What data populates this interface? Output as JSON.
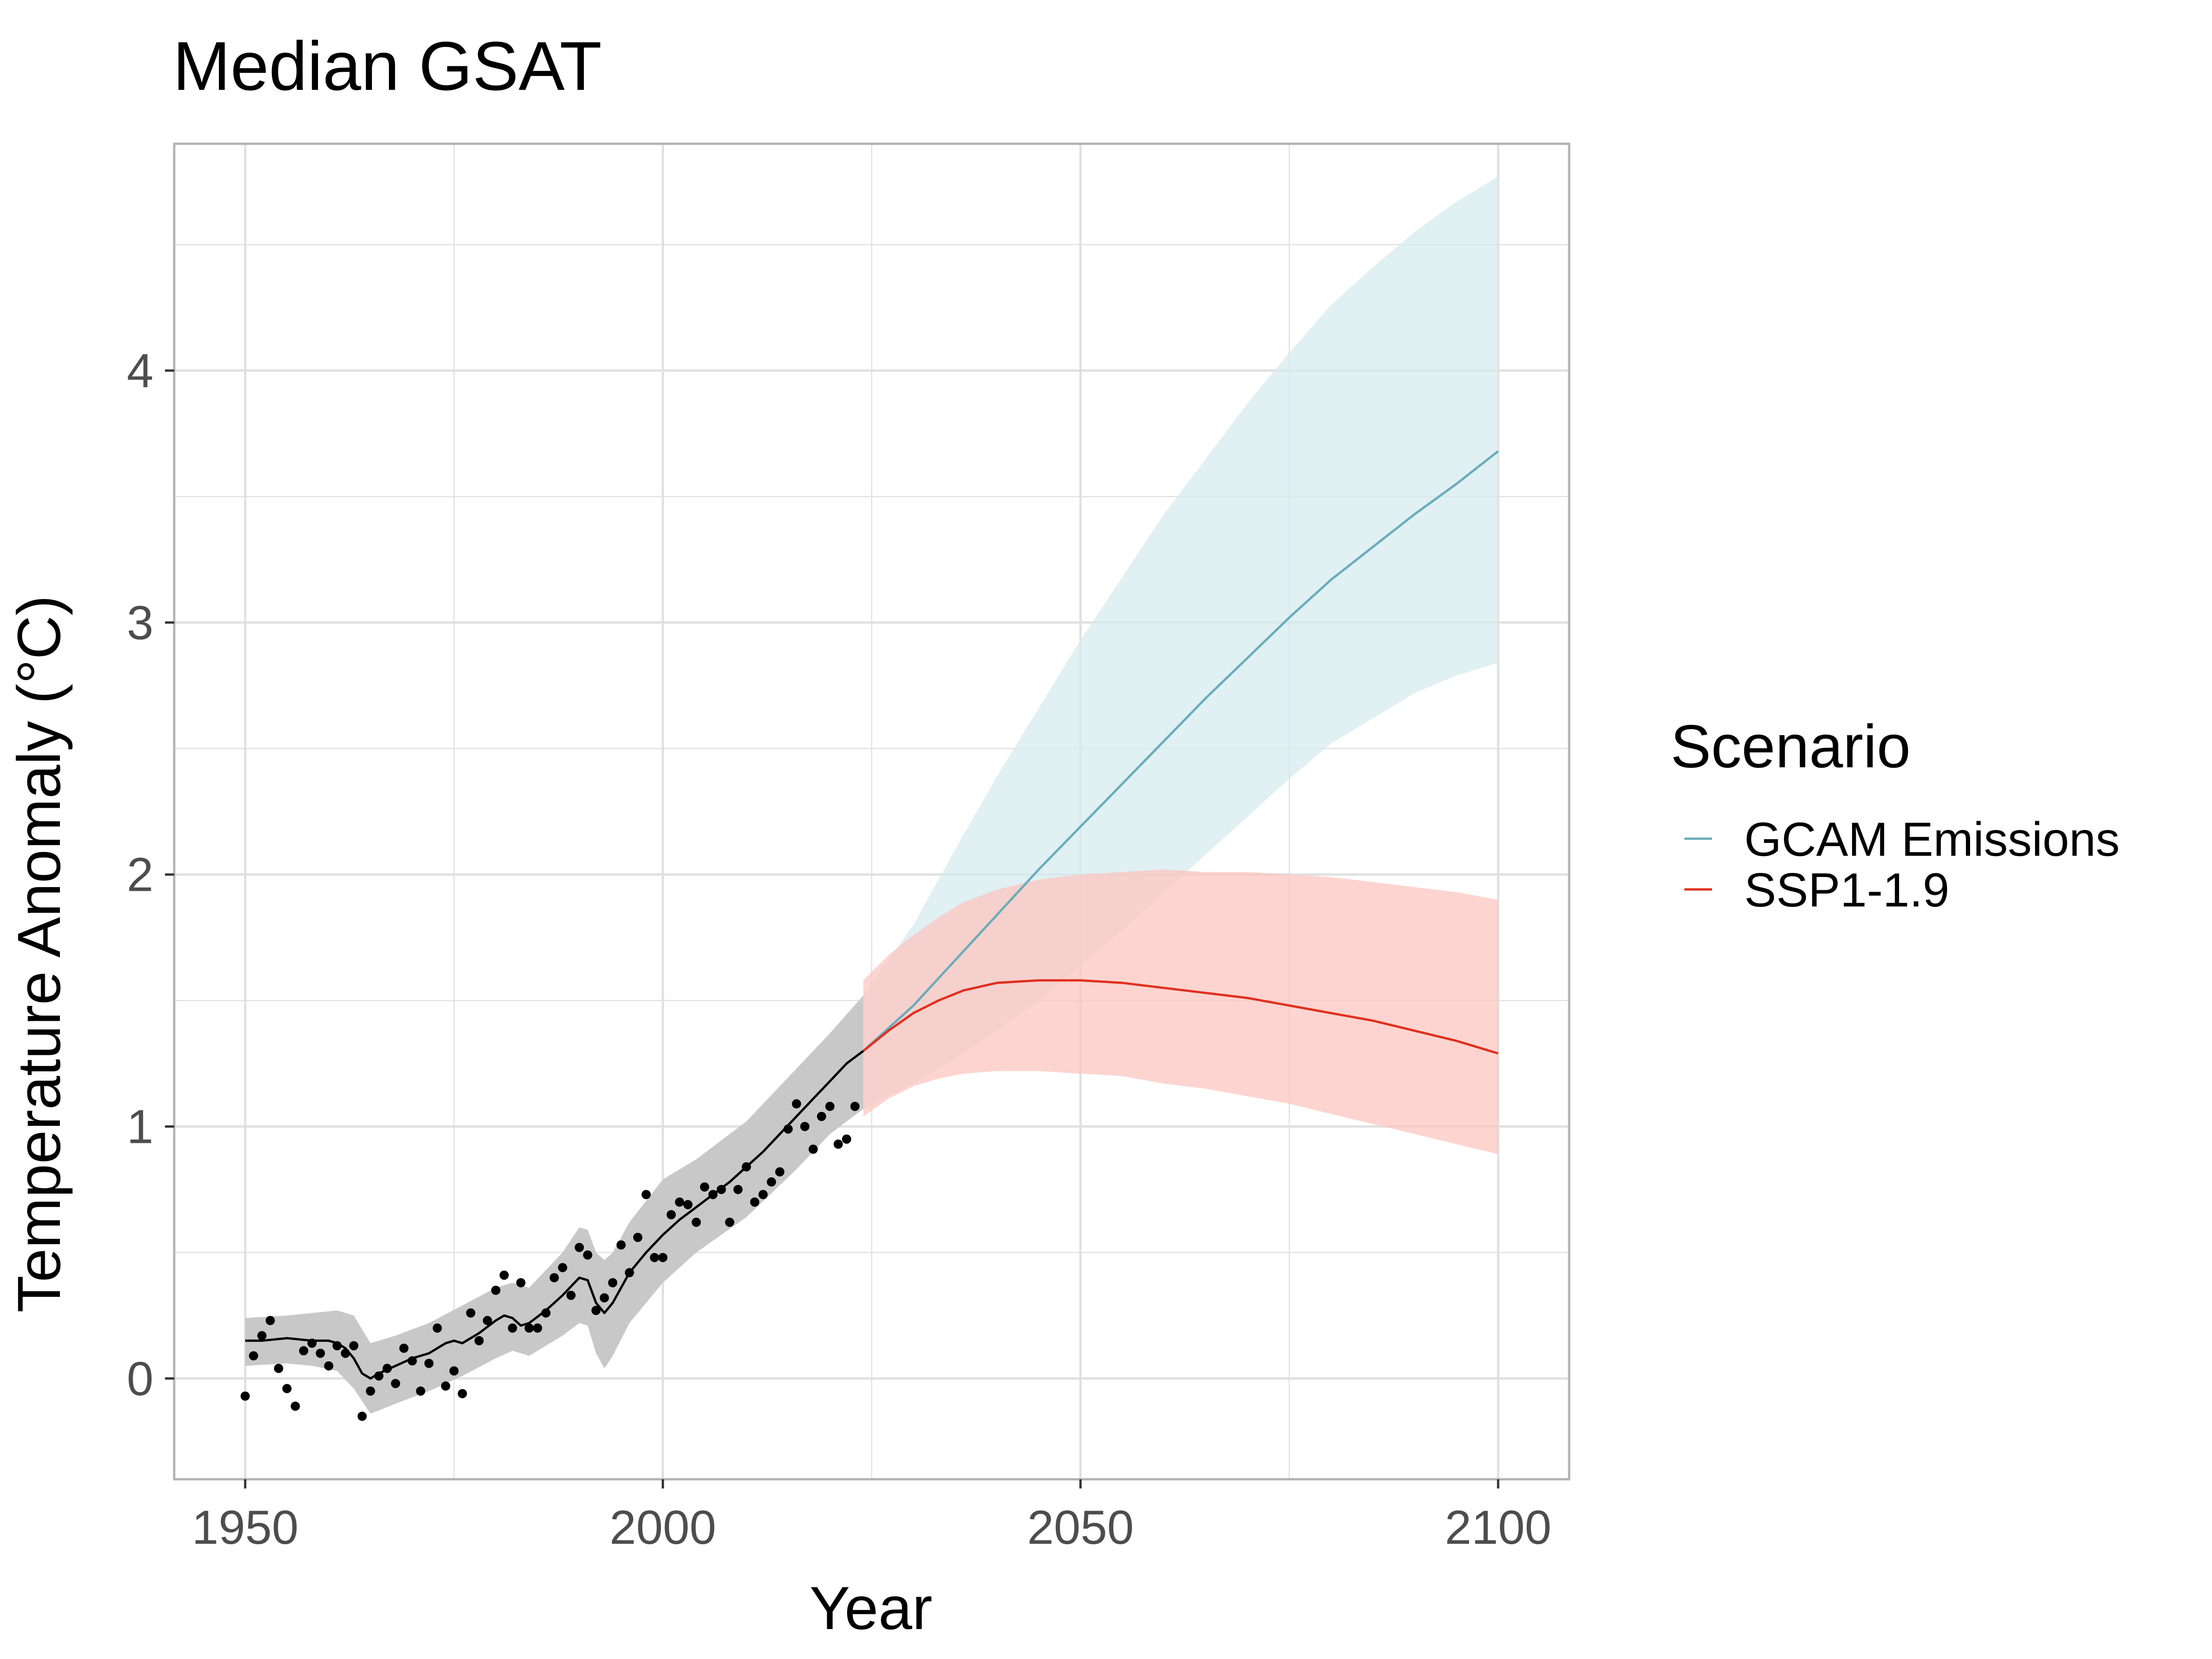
{
  "chart_data": {
    "type": "line",
    "title": "Median GSAT",
    "xlabel": "Year",
    "ylabel": "Temperature Anomaly (°C)",
    "xlim": [
      1941.5,
      2108.5
    ],
    "ylim": [
      -0.4,
      4.9
    ],
    "x_ticks": [
      1950,
      2000,
      2050,
      2100
    ],
    "x_tick_labels": [
      "1950",
      "2000",
      "2050",
      "2100"
    ],
    "y_ticks": [
      0,
      1,
      2,
      3,
      4
    ],
    "y_tick_labels": [
      "0",
      "1",
      "2",
      "3",
      "4"
    ],
    "grid": true,
    "legend": {
      "title": "Scenario",
      "position": "right",
      "entries": [
        {
          "name": "GCAM Emissions",
          "color": "#6aacba"
        },
        {
          "name": "SSP1-1.9",
          "color": "#e0301e"
        }
      ]
    },
    "historical": {
      "median_color": "#000000",
      "band_color": "#c8c8c8",
      "median_line": {
        "x": [
          1950,
          1952,
          1955,
          1958,
          1960,
          1961,
          1962,
          1963,
          1964,
          1965,
          1966,
          1968,
          1970,
          1972,
          1974,
          1975,
          1976,
          1978,
          1980,
          1981,
          1982,
          1983,
          1984,
          1986,
          1988,
          1990,
          1991,
          1992,
          1993,
          1994,
          1996,
          1998,
          2000,
          2002,
          2004,
          2006,
          2008,
          2010,
          2012,
          2014,
          2016,
          2018,
          2020,
          2022,
          2024
        ],
        "y": [
          0.15,
          0.15,
          0.16,
          0.15,
          0.15,
          0.14,
          0.12,
          0.08,
          0.02,
          0.0,
          0.02,
          0.05,
          0.08,
          0.1,
          0.14,
          0.15,
          0.14,
          0.18,
          0.23,
          0.25,
          0.24,
          0.21,
          0.22,
          0.27,
          0.33,
          0.4,
          0.39,
          0.3,
          0.26,
          0.3,
          0.42,
          0.5,
          0.57,
          0.63,
          0.68,
          0.73,
          0.78,
          0.84,
          0.9,
          0.97,
          1.04,
          1.11,
          1.18,
          1.25,
          1.3
        ]
      },
      "band_upper": {
        "x": [
          1950,
          1955,
          1958,
          1961,
          1963,
          1965,
          1968,
          1972,
          1976,
          1980,
          1982,
          1984,
          1988,
          1990,
          1991,
          1992,
          1993,
          1994,
          1996,
          2000,
          2004,
          2010,
          2016,
          2020,
          2024
        ],
        "y": [
          0.24,
          0.25,
          0.26,
          0.27,
          0.25,
          0.14,
          0.17,
          0.22,
          0.29,
          0.36,
          0.38,
          0.36,
          0.5,
          0.6,
          0.59,
          0.5,
          0.47,
          0.5,
          0.62,
          0.79,
          0.87,
          1.02,
          1.23,
          1.37,
          1.52
        ]
      },
      "band_lower": {
        "x": [
          1950,
          1955,
          1958,
          1961,
          1963,
          1965,
          1968,
          1972,
          1976,
          1980,
          1982,
          1984,
          1988,
          1990,
          1991,
          1992,
          1993,
          1994,
          1996,
          2000,
          2004,
          2010,
          2016,
          2020,
          2024
        ],
        "y": [
          0.05,
          0.06,
          0.05,
          0.03,
          -0.04,
          -0.14,
          -0.1,
          -0.05,
          0.01,
          0.08,
          0.11,
          0.09,
          0.17,
          0.22,
          0.21,
          0.1,
          0.04,
          0.09,
          0.22,
          0.38,
          0.5,
          0.64,
          0.83,
          0.97,
          1.07
        ]
      }
    },
    "observations": {
      "color": "#000000",
      "x": [
        1950,
        1951,
        1952,
        1953,
        1954,
        1955,
        1956,
        1957,
        1958,
        1959,
        1960,
        1961,
        1962,
        1963,
        1964,
        1965,
        1966,
        1967,
        1968,
        1969,
        1970,
        1971,
        1972,
        1973,
        1974,
        1975,
        1976,
        1977,
        1978,
        1979,
        1980,
        1981,
        1982,
        1983,
        1984,
        1985,
        1986,
        1987,
        1988,
        1989,
        1990,
        1991,
        1992,
        1993,
        1994,
        1995,
        1996,
        1997,
        1998,
        1999,
        2000,
        2001,
        2002,
        2003,
        2004,
        2005,
        2006,
        2007,
        2008,
        2009,
        2010,
        2011,
        2012,
        2013,
        2014,
        2015,
        2016,
        2017,
        2018,
        2019,
        2020,
        2021,
        2022,
        2023
      ],
      "y": [
        -0.07,
        0.09,
        0.17,
        0.23,
        0.04,
        -0.04,
        -0.11,
        0.11,
        0.14,
        0.1,
        0.05,
        0.13,
        0.1,
        0.13,
        -0.15,
        -0.05,
        0.01,
        0.04,
        -0.02,
        0.12,
        0.07,
        -0.05,
        0.06,
        0.2,
        -0.03,
        0.03,
        -0.06,
        0.26,
        0.15,
        0.23,
        0.35,
        0.41,
        0.2,
        0.38,
        0.2,
        0.2,
        0.26,
        0.4,
        0.44,
        0.33,
        0.52,
        0.49,
        0.27,
        0.32,
        0.38,
        0.53,
        0.42,
        0.56,
        0.73,
        0.48,
        0.48,
        0.65,
        0.7,
        0.69,
        0.62,
        0.76,
        0.73,
        0.75,
        0.62,
        0.75,
        0.84,
        0.7,
        0.73,
        0.78,
        0.82,
        0.99,
        1.09,
        1.0,
        0.91,
        1.04,
        1.08,
        0.93,
        0.95,
        1.08
      ]
    },
    "series": [
      {
        "name": "GCAM Emissions",
        "color": "#6aacba",
        "band_color": "#d6ebef",
        "x": [
          2024,
          2030,
          2035,
          2040,
          2045,
          2050,
          2055,
          2060,
          2065,
          2070,
          2075,
          2080,
          2085,
          2090,
          2095,
          2100
        ],
        "y": [
          1.3,
          1.48,
          1.66,
          1.84,
          2.02,
          2.19,
          2.36,
          2.53,
          2.7,
          2.86,
          3.02,
          3.17,
          3.3,
          3.43,
          3.55,
          3.68
        ],
        "upper": [
          1.52,
          1.8,
          2.1,
          2.39,
          2.66,
          2.93,
          3.18,
          3.43,
          3.65,
          3.87,
          4.07,
          4.26,
          4.41,
          4.55,
          4.67,
          4.77
        ],
        "lower": [
          1.07,
          1.17,
          1.27,
          1.38,
          1.5,
          1.64,
          1.78,
          1.93,
          2.08,
          2.23,
          2.38,
          2.52,
          2.62,
          2.72,
          2.79,
          2.84
        ]
      },
      {
        "name": "SSP1-1.9",
        "color": "#e0301e",
        "band_color": "#fcc5c0",
        "x": [
          2024,
          2027,
          2030,
          2033,
          2036,
          2040,
          2045,
          2050,
          2055,
          2060,
          2065,
          2070,
          2075,
          2080,
          2085,
          2090,
          2095,
          2100
        ],
        "y": [
          1.3,
          1.38,
          1.45,
          1.5,
          1.54,
          1.57,
          1.58,
          1.58,
          1.57,
          1.55,
          1.53,
          1.51,
          1.48,
          1.45,
          1.42,
          1.38,
          1.34,
          1.29
        ],
        "upper": [
          1.58,
          1.68,
          1.76,
          1.83,
          1.89,
          1.94,
          1.98,
          2.0,
          2.01,
          2.02,
          2.01,
          2.01,
          2.0,
          1.99,
          1.97,
          1.95,
          1.93,
          1.9
        ],
        "lower": [
          1.04,
          1.11,
          1.16,
          1.19,
          1.21,
          1.22,
          1.22,
          1.21,
          1.2,
          1.17,
          1.15,
          1.12,
          1.09,
          1.05,
          1.01,
          0.97,
          0.93,
          0.89
        ]
      }
    ]
  }
}
